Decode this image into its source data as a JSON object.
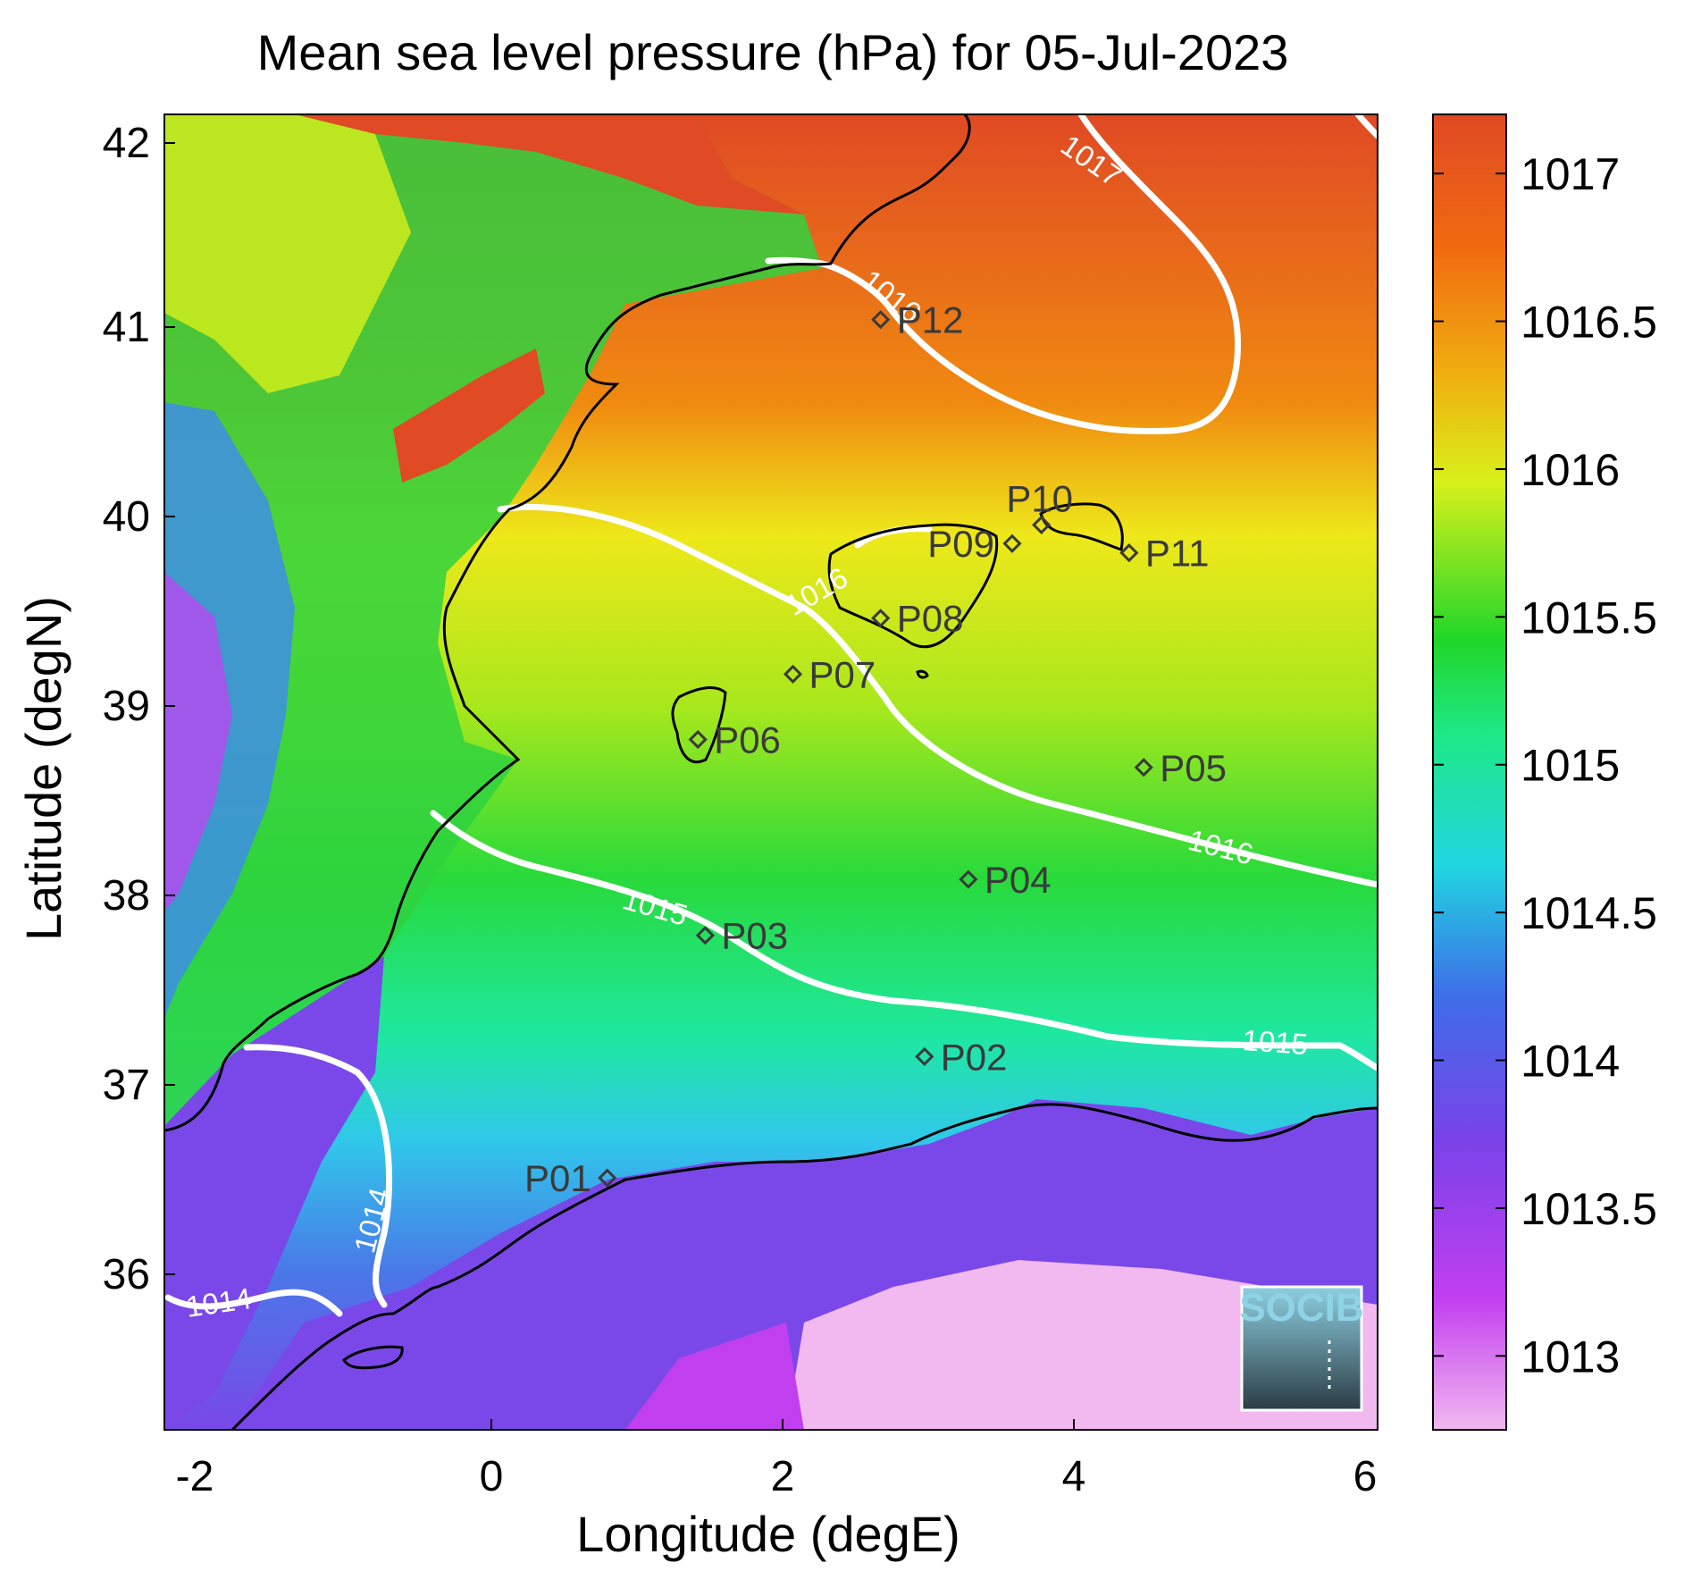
{
  "title": "Mean sea level pressure (hPa) for 05-Jul-2023",
  "xlabel": "Longitude (degE)",
  "ylabel": "Latitude (degN)",
  "x_ticks": [
    "-2",
    "0",
    "2",
    "4",
    "6"
  ],
  "y_ticks": [
    "36",
    "37",
    "38",
    "39",
    "40",
    "41",
    "42"
  ],
  "colorbar": {
    "ticks": [
      "1013",
      "1013.5",
      "1014",
      "1014.5",
      "1015",
      "1015.5",
      "1016",
      "1016.5",
      "1017"
    ],
    "colors": [
      "#f2b8f0",
      "#c23ff0",
      "#7a42e8",
      "#3e6ee8",
      "#20d6e0",
      "#1ee886",
      "#20d62a",
      "#d8f01a",
      "#f0b010",
      "#f06a10",
      "#e04a24"
    ]
  },
  "stations": [
    {
      "label": "P01",
      "lon": 0.83,
      "lat": 36.5
    },
    {
      "label": "P02",
      "lon": 3.0,
      "lat": 37.15
    },
    {
      "label": "P03",
      "lon": 1.5,
      "lat": 37.8
    },
    {
      "label": "P04",
      "lon": 3.3,
      "lat": 38.1
    },
    {
      "label": "P05",
      "lon": 4.5,
      "lat": 38.7
    },
    {
      "label": "P06",
      "lon": 1.45,
      "lat": 38.85
    },
    {
      "label": "P07",
      "lon": 2.1,
      "lat": 39.2
    },
    {
      "label": "P08",
      "lon": 2.7,
      "lat": 39.5
    },
    {
      "label": "P09",
      "lon": 3.6,
      "lat": 39.9
    },
    {
      "label": "P10",
      "lon": 3.8,
      "lat": 40.0
    },
    {
      "label": "P11",
      "lon": 4.4,
      "lat": 39.85
    },
    {
      "label": "P12",
      "lon": 2.7,
      "lat": 41.1
    }
  ],
  "contour_labels": [
    "1014",
    "1014",
    "1015",
    "1015",
    "1016",
    "1016",
    "1016",
    "1017"
  ],
  "logo": {
    "text": "SOCIB"
  }
}
